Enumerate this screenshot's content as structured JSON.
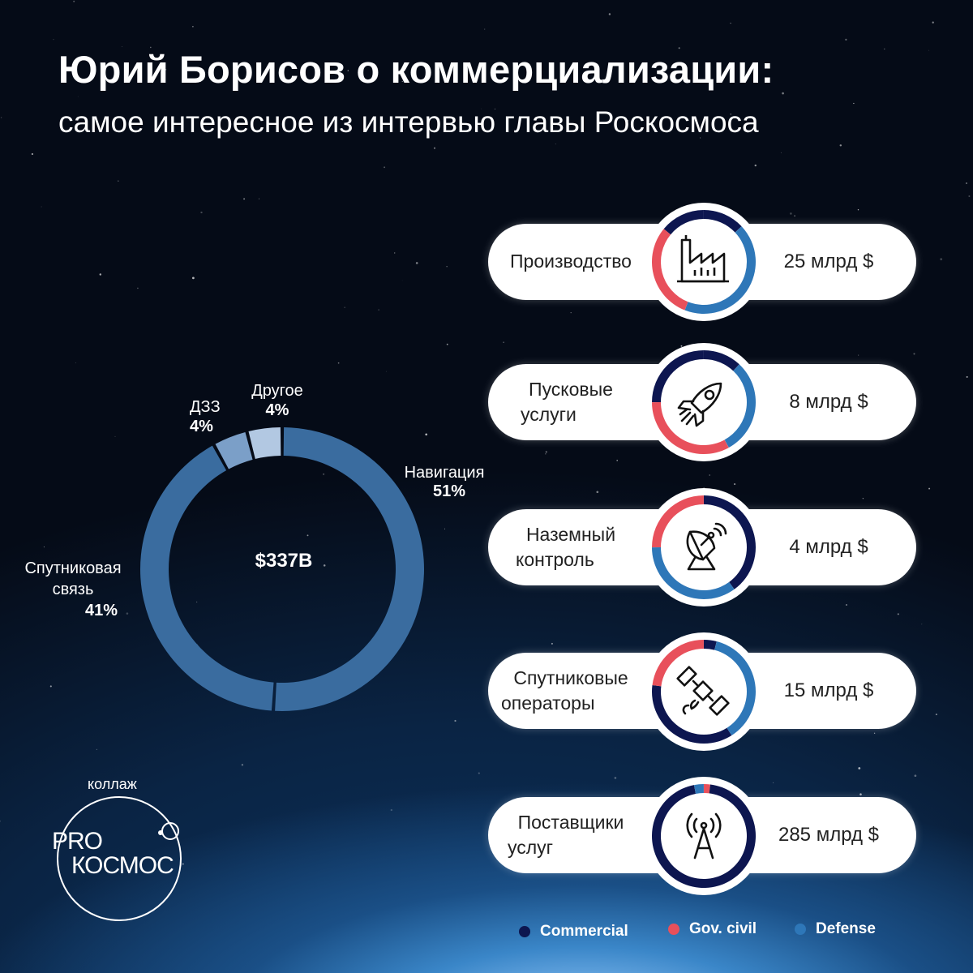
{
  "header": {
    "title": "Юрий Борисов о коммерциализации:",
    "subtitle": "самое интересное из интервью главы Роскосмоса"
  },
  "chart_data": [
    {
      "type": "pie",
      "center_label": "$337B",
      "slices": [
        {
          "label": "Навигация",
          "percent_label": "51%",
          "value": 51,
          "color": "#3a6c9f"
        },
        {
          "label": "Спутниковая связь",
          "percent_label": "41%",
          "value": 41,
          "color": "#3a6c9f"
        },
        {
          "label": "ДЗЗ",
          "percent_label": "4%",
          "value": 4,
          "color": "#7b9fc8"
        },
        {
          "label": "Другое",
          "percent_label": "4%",
          "value": 4,
          "color": "#b2c8e2"
        }
      ]
    },
    {
      "type": "pie",
      "categories": [
        "Производство",
        "Пусковые услуги",
        "Наземный контроль",
        "Спутниковые операторы",
        "Поставщики услуг"
      ],
      "values_label": [
        "25 млрд $",
        "8 млрд $",
        "4 млрд $",
        "15 млрд $",
        "285 млрд $"
      ],
      "values": [
        25,
        8,
        4,
        15,
        285
      ],
      "unit": "млрд $",
      "series": [
        {
          "name": "Commercial",
          "color": "#0d1650"
        },
        {
          "name": "Gov. civil",
          "color": "#e8505b"
        },
        {
          "name": "Defense",
          "color": "#2e77b8"
        }
      ]
    }
  ],
  "sectors": [
    {
      "name_lines": [
        "Производство"
      ],
      "value": "25 млрд $",
      "icon": "factory-icon",
      "ring": [
        {
          "color": "#0d1650",
          "frac": 0.13
        },
        {
          "color": "#2e77b8",
          "frac": 0.43
        },
        {
          "color": "#e8505b",
          "frac": 0.3
        },
        {
          "color": "#0d1650",
          "frac": 0.14
        }
      ]
    },
    {
      "name_lines": [
        "Пусковые",
        "услуги"
      ],
      "value": "8 млрд $",
      "icon": "rocket-icon",
      "ring": [
        {
          "color": "#0d1650",
          "frac": 0.12
        },
        {
          "color": "#2e77b8",
          "frac": 0.3
        },
        {
          "color": "#e8505b",
          "frac": 0.33
        },
        {
          "color": "#0d1650",
          "frac": 0.25
        }
      ]
    },
    {
      "name_lines": [
        "Наземный",
        "контроль"
      ],
      "value": "4 млрд $",
      "icon": "satellite-dish-icon",
      "ring": [
        {
          "color": "#0d1650",
          "frac": 0.4
        },
        {
          "color": "#2e77b8",
          "frac": 0.35
        },
        {
          "color": "#e8505b",
          "frac": 0.25
        }
      ]
    },
    {
      "name_lines": [
        "Спутниковые",
        "операторы"
      ],
      "value": "15 млрд $",
      "icon": "satellite-icon",
      "ring": [
        {
          "color": "#0d1650",
          "frac": 0.04
        },
        {
          "color": "#2e77b8",
          "frac": 0.37
        },
        {
          "color": "#0d1650",
          "frac": 0.36
        },
        {
          "color": "#e8505b",
          "frac": 0.23
        }
      ]
    },
    {
      "name_lines": [
        "Поставщики",
        "услуг"
      ],
      "value": "285 млрд $",
      "icon": "antenna-tower-icon",
      "ring": [
        {
          "color": "#e8505b",
          "frac": 0.02
        },
        {
          "color": "#0d1650",
          "frac": 0.95
        },
        {
          "color": "#2e77b8",
          "frac": 0.03
        }
      ]
    }
  ],
  "legend": [
    {
      "label": "Commercial",
      "color": "#0d1650"
    },
    {
      "label": "Gov. civil",
      "color": "#e8505b"
    },
    {
      "label": "Defense",
      "color": "#2e77b8"
    }
  ],
  "logo": {
    "caption": "коллаж",
    "line1": "PRO",
    "line2": "КОСМОС"
  }
}
